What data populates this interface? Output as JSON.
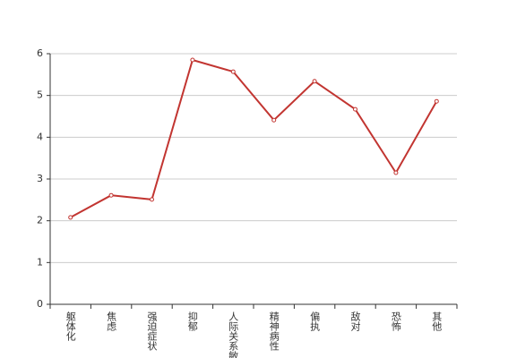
{
  "chart_data": {
    "type": "line",
    "categories": [
      "躯体化",
      "焦虑",
      "强迫症状",
      "抑郁",
      "人际关系敏感",
      "精神病性",
      "偏执",
      "敌对",
      "恐怖",
      "其他"
    ],
    "values": [
      2.08,
      2.61,
      2.51,
      5.85,
      5.57,
      4.41,
      5.34,
      4.67,
      3.15,
      4.86
    ],
    "color": "#c23531",
    "ylim": [
      0,
      6
    ],
    "yticks": [
      0,
      1,
      2,
      3,
      4,
      5,
      6
    ],
    "grid": true
  }
}
